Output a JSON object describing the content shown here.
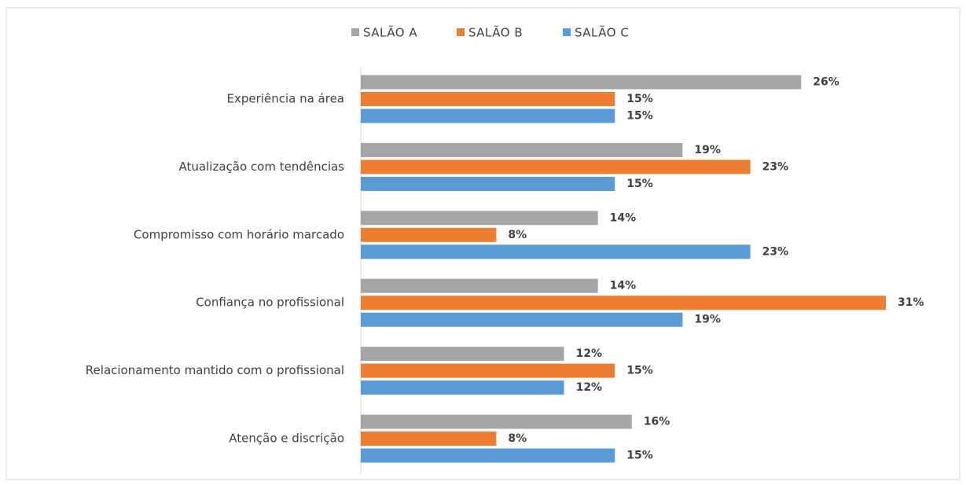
{
  "chart_data": {
    "type": "bar",
    "orientation": "horizontal",
    "categories": [
      "Experiência na área",
      "Atualização com tendências",
      "Compromisso com horário marcado",
      "Confiança no profissional",
      "Relacionamento mantido com o profissional",
      "Atenção e discrição"
    ],
    "series": [
      {
        "name": "SALÃO A",
        "color": "#a5a5a5",
        "values": [
          26,
          19,
          14,
          14,
          12,
          16
        ],
        "value_labels": [
          "26%",
          "19%",
          "14%",
          "14%",
          "12%",
          "16%"
        ]
      },
      {
        "name": "SALÃO B",
        "color": "#ed7d31",
        "values": [
          15,
          23,
          8,
          31,
          15,
          8
        ],
        "value_labels": [
          "15%",
          "23%",
          "8%",
          "31%",
          "15%",
          "8%"
        ]
      },
      {
        "name": "SALÃO C",
        "color": "#5b9bd5",
        "values": [
          15,
          15,
          23,
          19,
          12,
          15
        ],
        "value_labels": [
          "15%",
          "15%",
          "23%",
          "19%",
          "12%",
          "15%"
        ]
      }
    ],
    "legend": "top"
  }
}
